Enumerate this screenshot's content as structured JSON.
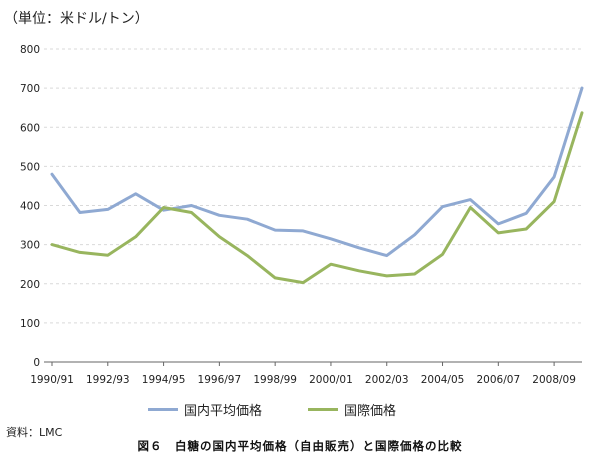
{
  "unit_label": "（単位：米ドル/トン）",
  "source": "資料：LMC",
  "caption": "図６　白糖の国内平均価格（自由販売）と国際価格の比較",
  "chart_data": {
    "type": "line",
    "title": "",
    "xlabel": "",
    "ylabel": "",
    "ylim": [
      0,
      800
    ],
    "yticks": [
      0,
      100,
      200,
      300,
      400,
      500,
      600,
      700,
      800
    ],
    "grid": "horizontal",
    "legend_position": "bottom",
    "x": [
      "1990/91",
      "1991/92",
      "1992/93",
      "1993/94",
      "1994/95",
      "1995/96",
      "1996/97",
      "1997/98",
      "1998/99",
      "1999/00",
      "2000/01",
      "2001/02",
      "2002/03",
      "2003/04",
      "2004/05",
      "2005/06",
      "2006/07",
      "2007/08",
      "2008/09",
      "2009/10"
    ],
    "xtick_labels": [
      "1990/91",
      "1992/93",
      "1994/95",
      "1996/97",
      "1998/99",
      "2000/01",
      "2002/03",
      "2004/05",
      "2006/07",
      "2008/09"
    ],
    "series": [
      {
        "name": "国内平均価格",
        "color": "#8fa9d2",
        "values": [
          480,
          382,
          390,
          430,
          388,
          400,
          375,
          365,
          337,
          335,
          315,
          292,
          272,
          325,
          397,
          415,
          353,
          380,
          473,
          700
        ]
      },
      {
        "name": "国際価格",
        "color": "#98b55e",
        "values": [
          300,
          280,
          273,
          320,
          395,
          382,
          320,
          272,
          215,
          203,
          250,
          233,
          220,
          225,
          275,
          395,
          330,
          340,
          410,
          637
        ]
      }
    ]
  }
}
